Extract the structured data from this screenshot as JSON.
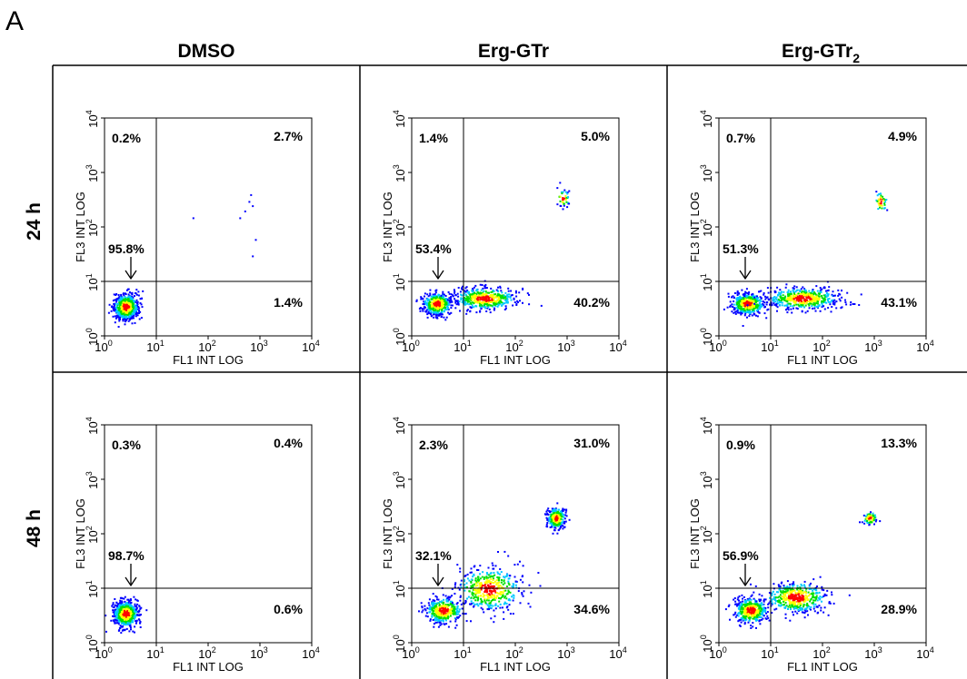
{
  "panel_label": "A",
  "chart_data": {
    "type": "scatter",
    "columns": [
      "DMSO",
      "Erg-GTr",
      "Erg-GTr"
    ],
    "column_subscripts": [
      "",
      "",
      "2"
    ],
    "rows": [
      "24 h",
      "48 h"
    ],
    "xlabel": "FL1 INT LOG",
    "ylabel": "FL3 INT LOG",
    "tick_base": "10",
    "tick_exponents": [
      "0",
      "1",
      "2",
      "3",
      "4"
    ],
    "xscale": "log",
    "yscale": "log",
    "xlim": [
      1,
      10000
    ],
    "ylim": [
      1,
      10000
    ],
    "gate": {
      "x": 10,
      "y": 10
    },
    "density_colors": [
      "#0000ff",
      "#00c8ff",
      "#00e000",
      "#ffff00",
      "#ff0000"
    ],
    "plots": [
      {
        "column": "DMSO",
        "row": "24 h",
        "quadrants": {
          "upper_left": "0.2%",
          "upper_right": "2.7%",
          "lower_left": "95.8%",
          "lower_right": "1.4%"
        },
        "populations": [
          {
            "x": 2.5,
            "y": 3.5,
            "spread_x": 0.12,
            "spread_y": 0.12,
            "count": 600
          }
        ],
        "sparse_points": [
          [
            500,
            200
          ],
          [
            600,
            300
          ],
          [
            700,
            250
          ],
          [
            400,
            150
          ],
          [
            800,
            60
          ],
          [
            650,
            400
          ],
          [
            50,
            150
          ],
          [
            700,
            30
          ]
        ]
      },
      {
        "column": "Erg-GTr",
        "row": "24 h",
        "quadrants": {
          "upper_left": "1.4%",
          "upper_right": "5.0%",
          "lower_left": "53.4%",
          "lower_right": "40.2%"
        },
        "populations": [
          {
            "x": 3,
            "y": 4,
            "spread_x": 0.14,
            "spread_y": 0.1,
            "count": 450
          },
          {
            "x": 25,
            "y": 5,
            "spread_x": 0.3,
            "spread_y": 0.1,
            "count": 500
          },
          {
            "x": 800,
            "y": 350,
            "spread_x": 0.07,
            "spread_y": 0.08,
            "count": 40
          }
        ],
        "sparse_points": []
      },
      {
        "column": "Erg-GTr",
        "row": "24 h",
        "quadrants": {
          "upper_left": "0.7%",
          "upper_right": "4.9%",
          "lower_left": "51.3%",
          "lower_right": "43.1%"
        },
        "populations": [
          {
            "x": 3.5,
            "y": 4,
            "spread_x": 0.16,
            "spread_y": 0.1,
            "count": 450
          },
          {
            "x": 40,
            "y": 5,
            "spread_x": 0.35,
            "spread_y": 0.1,
            "count": 500
          },
          {
            "x": 1300,
            "y": 300,
            "spread_x": 0.06,
            "spread_y": 0.1,
            "count": 40
          }
        ],
        "sparse_points": []
      },
      {
        "column": "DMSO",
        "row": "48 h",
        "quadrants": {
          "upper_left": "0.3%",
          "upper_right": "0.4%",
          "lower_left": "98.7%",
          "lower_right": "0.6%"
        },
        "populations": [
          {
            "x": 2.5,
            "y": 3.5,
            "spread_x": 0.12,
            "spread_y": 0.12,
            "count": 650
          }
        ],
        "sparse_points": []
      },
      {
        "column": "Erg-GTr",
        "row": "48 h",
        "quadrants": {
          "upper_left": "2.3%",
          "upper_right": "31.0%",
          "lower_left": "32.1%",
          "lower_right": "34.6%"
        },
        "populations": [
          {
            "x": 4,
            "y": 4,
            "spread_x": 0.18,
            "spread_y": 0.12,
            "count": 350
          },
          {
            "x": 30,
            "y": 10,
            "spread_x": 0.32,
            "spread_y": 0.2,
            "count": 450
          },
          {
            "x": 600,
            "y": 200,
            "spread_x": 0.09,
            "spread_y": 0.1,
            "count": 280
          }
        ],
        "sparse_points": []
      },
      {
        "column": "Erg-GTr",
        "row": "48 h",
        "quadrants": {
          "upper_left": "0.9%",
          "upper_right": "13.3%",
          "lower_left": "56.9%",
          "lower_right": "28.9%"
        },
        "populations": [
          {
            "x": 4,
            "y": 4,
            "spread_x": 0.16,
            "spread_y": 0.12,
            "count": 450
          },
          {
            "x": 30,
            "y": 7,
            "spread_x": 0.3,
            "spread_y": 0.14,
            "count": 450
          },
          {
            "x": 800,
            "y": 200,
            "spread_x": 0.07,
            "spread_y": 0.06,
            "count": 70
          }
        ],
        "sparse_points": []
      }
    ]
  }
}
